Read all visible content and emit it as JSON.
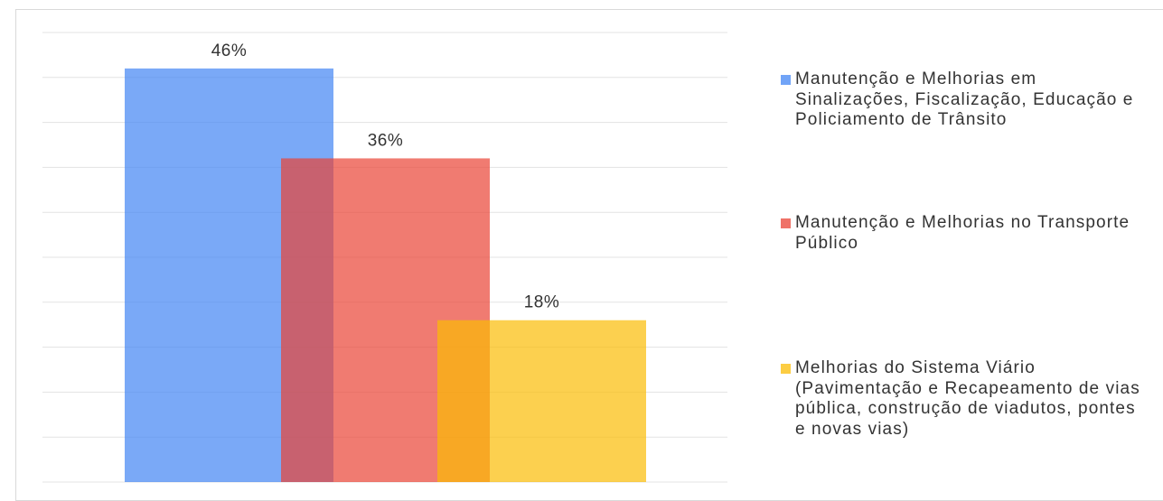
{
  "chart_data": {
    "type": "bar",
    "layout": "overlap",
    "categories": [
      null
    ],
    "series": [
      {
        "name": "Manutenção e Melhorias em Sinalizações, Fiscalização, Educação e Policiamento de Trânsito",
        "color": "#4285f4",
        "values": [
          46
        ],
        "value_labels": [
          "46%"
        ]
      },
      {
        "name": "Manutenção e Melhorias no Transporte Público",
        "color": "#ea4335",
        "values": [
          36
        ],
        "value_labels": [
          "36%"
        ]
      },
      {
        "name": "Melhorias do Sistema Viário (Pavimentação e Recapeamento de vias pública, construção de viadutos, pontes e novas vias)",
        "color": "#fbbc04",
        "values": [
          18
        ],
        "value_labels": [
          "18%"
        ]
      }
    ],
    "ylim": [
      0,
      50
    ],
    "yticks": [
      0,
      5,
      10,
      15,
      20,
      25,
      30,
      35,
      40,
      45,
      50
    ],
    "grid": true,
    "legend": "right"
  }
}
